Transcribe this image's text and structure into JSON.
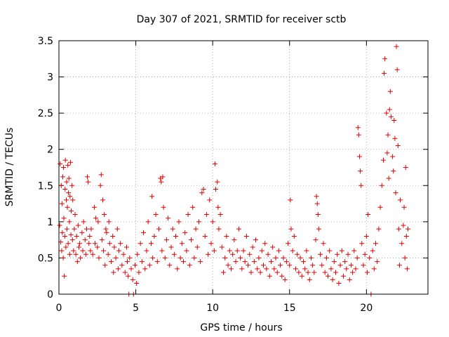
{
  "chart_data": {
    "type": "scatter",
    "title": "Day 307 of 2021, SRMTID for receiver sctb",
    "xlabel": "GPS time / hours",
    "ylabel": "SRMTID / TECUs",
    "xlim": [
      0,
      24
    ],
    "ylim": [
      0,
      3.5
    ],
    "xticks": [
      0,
      5,
      10,
      15,
      20
    ],
    "xtick_labels": [
      "0",
      "5",
      "10",
      "15",
      "20"
    ],
    "yticks": [
      0,
      0.5,
      1,
      1.5,
      2,
      2.5,
      3,
      3.5
    ],
    "ytick_labels": [
      "0",
      "0.5",
      "1",
      "1.5",
      "2",
      "2.5",
      "3",
      "3.5"
    ],
    "grid": true,
    "marker": "+",
    "color": "#e00000",
    "series": [
      {
        "name": "SRMTID",
        "points": [
          [
            0.05,
            0.95
          ],
          [
            0.08,
            1.8
          ],
          [
            0.12,
            0.72
          ],
          [
            0.15,
            1.5
          ],
          [
            0.18,
            0.6
          ],
          [
            0.2,
            1.25
          ],
          [
            0.22,
            0.85
          ],
          [
            0.25,
            1.62
          ],
          [
            0.28,
            0.5
          ],
          [
            0.3,
            1.75
          ],
          [
            0.32,
            1.05
          ],
          [
            0.35,
            0.25
          ],
          [
            0.38,
            0.8
          ],
          [
            0.4,
            1.45
          ],
          [
            0.42,
            1.85
          ],
          [
            0.45,
            0.65
          ],
          [
            0.48,
            1.3
          ],
          [
            0.5,
            1.55
          ],
          [
            0.52,
            0.9
          ],
          [
            0.55,
            1.2
          ],
          [
            0.58,
            1.78
          ],
          [
            0.6,
            0.7
          ],
          [
            0.62,
            1.4
          ],
          [
            0.65,
            1.6
          ],
          [
            0.68,
            1.0
          ],
          [
            0.7,
            0.55
          ],
          [
            0.72,
            1.35
          ],
          [
            0.75,
            1.82
          ],
          [
            0.78,
            0.82
          ],
          [
            0.8,
            1.15
          ],
          [
            0.85,
            1.5
          ],
          [
            0.88,
            0.75
          ],
          [
            0.9,
            1.3
          ],
          [
            0.95,
            0.6
          ],
          [
            1.0,
            0.9
          ],
          [
            1.05,
            1.1
          ],
          [
            1.1,
            0.55
          ],
          [
            1.15,
            0.8
          ],
          [
            1.2,
            0.45
          ],
          [
            1.25,
            0.95
          ],
          [
            1.3,
            0.65
          ],
          [
            1.35,
            0.7
          ],
          [
            1.4,
            0.5
          ],
          [
            1.5,
            0.85
          ],
          [
            1.55,
            0.6
          ],
          [
            1.6,
            1.0
          ],
          [
            1.7,
            0.75
          ],
          [
            1.75,
            0.55
          ],
          [
            1.8,
            0.9
          ],
          [
            1.85,
            1.62
          ],
          [
            1.9,
            1.55
          ],
          [
            1.95,
            0.7
          ],
          [
            2.0,
            0.8
          ],
          [
            2.05,
            0.6
          ],
          [
            2.1,
            0.9
          ],
          [
            2.2,
            0.55
          ],
          [
            2.3,
            1.2
          ],
          [
            2.35,
            0.7
          ],
          [
            2.4,
            1.05
          ],
          [
            2.5,
            0.65
          ],
          [
            2.55,
            1.0
          ],
          [
            2.6,
            0.5
          ],
          [
            2.7,
            1.5
          ],
          [
            2.75,
            1.65
          ],
          [
            2.8,
            0.75
          ],
          [
            2.85,
            1.3
          ],
          [
            2.9,
            0.6
          ],
          [
            2.95,
            1.1
          ],
          [
            3.0,
            0.4
          ],
          [
            3.05,
            0.9
          ],
          [
            3.1,
            0.85
          ],
          [
            3.2,
            0.55
          ],
          [
            3.25,
            1.0
          ],
          [
            3.3,
            0.7
          ],
          [
            3.4,
            0.45
          ],
          [
            3.5,
            0.8
          ],
          [
            3.55,
            0.3
          ],
          [
            3.6,
            0.65
          ],
          [
            3.7,
            0.5
          ],
          [
            3.8,
            0.9
          ],
          [
            3.85,
            0.35
          ],
          [
            3.9,
            0.6
          ],
          [
            4.0,
            0.7
          ],
          [
            4.1,
            0.4
          ],
          [
            4.2,
            0.55
          ],
          [
            4.3,
            0.3
          ],
          [
            4.4,
            0.65
          ],
          [
            4.45,
            0.45
          ],
          [
            4.5,
            0.25
          ],
          [
            4.55,
            0.0
          ],
          [
            4.6,
            0.5
          ],
          [
            4.7,
            0.35
          ],
          [
            4.8,
            0.2
          ],
          [
            4.85,
            0.0
          ],
          [
            4.95,
            0.4
          ],
          [
            5.05,
            0.15
          ],
          [
            5.1,
            0.55
          ],
          [
            5.2,
            0.3
          ],
          [
            5.3,
            0.7
          ],
          [
            5.4,
            0.45
          ],
          [
            5.5,
            0.85
          ],
          [
            5.6,
            0.35
          ],
          [
            5.7,
            0.6
          ],
          [
            5.8,
            1.0
          ],
          [
            5.9,
            0.4
          ],
          [
            6.0,
            0.7
          ],
          [
            6.05,
            1.35
          ],
          [
            6.1,
            0.5
          ],
          [
            6.2,
            0.8
          ],
          [
            6.3,
            1.1
          ],
          [
            6.4,
            0.45
          ],
          [
            6.5,
            0.9
          ],
          [
            6.6,
            1.6
          ],
          [
            6.65,
            1.55
          ],
          [
            6.7,
            0.6
          ],
          [
            6.75,
            1.62
          ],
          [
            6.8,
            1.2
          ],
          [
            6.9,
            0.5
          ],
          [
            7.0,
            0.75
          ],
          [
            7.1,
            1.05
          ],
          [
            7.2,
            0.4
          ],
          [
            7.3,
            0.65
          ],
          [
            7.4,
            0.9
          ],
          [
            7.5,
            0.55
          ],
          [
            7.6,
            0.8
          ],
          [
            7.7,
            0.35
          ],
          [
            7.8,
            1.0
          ],
          [
            7.9,
            0.5
          ],
          [
            8.0,
            0.7
          ],
          [
            8.1,
            0.45
          ],
          [
            8.2,
            0.85
          ],
          [
            8.3,
            0.6
          ],
          [
            8.4,
            1.1
          ],
          [
            8.5,
            0.4
          ],
          [
            8.6,
            0.75
          ],
          [
            8.7,
            1.2
          ],
          [
            8.8,
            0.5
          ],
          [
            8.9,
            0.9
          ],
          [
            9.0,
            0.65
          ],
          [
            9.1,
            1.0
          ],
          [
            9.2,
            0.45
          ],
          [
            9.3,
            1.4
          ],
          [
            9.4,
            1.45
          ],
          [
            9.5,
            0.8
          ],
          [
            9.6,
            1.1
          ],
          [
            9.7,
            0.55
          ],
          [
            9.8,
            1.3
          ],
          [
            9.9,
            0.7
          ],
          [
            10.0,
            1.0
          ],
          [
            10.1,
            0.6
          ],
          [
            10.15,
            1.8
          ],
          [
            10.2,
            1.45
          ],
          [
            10.3,
            1.55
          ],
          [
            10.35,
            1.2
          ],
          [
            10.4,
            0.9
          ],
          [
            10.5,
            1.1
          ],
          [
            10.6,
            0.65
          ],
          [
            10.7,
            0.3
          ],
          [
            10.8,
            0.5
          ],
          [
            10.9,
            0.8
          ],
          [
            11.0,
            0.4
          ],
          [
            11.1,
            0.6
          ],
          [
            11.2,
            0.35
          ],
          [
            11.3,
            0.55
          ],
          [
            11.4,
            0.75
          ],
          [
            11.5,
            0.45
          ],
          [
            11.6,
            0.6
          ],
          [
            11.7,
            0.9
          ],
          [
            11.8,
            0.5
          ],
          [
            11.9,
            0.35
          ],
          [
            12.0,
            0.6
          ],
          [
            12.1,
            0.45
          ],
          [
            12.2,
            0.8
          ],
          [
            12.3,
            0.4
          ],
          [
            12.4,
            0.55
          ],
          [
            12.5,
            0.3
          ],
          [
            12.6,
            0.65
          ],
          [
            12.7,
            0.45
          ],
          [
            12.8,
            0.75
          ],
          [
            12.9,
            0.35
          ],
          [
            13.0,
            0.5
          ],
          [
            13.1,
            0.3
          ],
          [
            13.2,
            0.6
          ],
          [
            13.3,
            0.4
          ],
          [
            13.4,
            0.7
          ],
          [
            13.5,
            0.35
          ],
          [
            13.6,
            0.55
          ],
          [
            13.7,
            0.25
          ],
          [
            13.8,
            0.45
          ],
          [
            13.9,
            0.65
          ],
          [
            14.0,
            0.35
          ],
          [
            14.1,
            0.5
          ],
          [
            14.2,
            0.3
          ],
          [
            14.3,
            0.6
          ],
          [
            14.4,
            0.4
          ],
          [
            14.5,
            0.25
          ],
          [
            14.6,
            0.5
          ],
          [
            14.7,
            0.2
          ],
          [
            14.8,
            0.45
          ],
          [
            14.9,
            0.7
          ],
          [
            15.0,
            0.4
          ],
          [
            15.05,
            1.3
          ],
          [
            15.1,
            0.9
          ],
          [
            15.2,
            0.6
          ],
          [
            15.3,
            0.8
          ],
          [
            15.4,
            0.35
          ],
          [
            15.5,
            0.55
          ],
          [
            15.6,
            0.3
          ],
          [
            15.7,
            0.5
          ],
          [
            15.8,
            0.25
          ],
          [
            15.9,
            0.45
          ],
          [
            16.0,
            0.35
          ],
          [
            16.1,
            0.6
          ],
          [
            16.2,
            0.3
          ],
          [
            16.3,
            0.2
          ],
          [
            16.4,
            0.5
          ],
          [
            16.5,
            0.4
          ],
          [
            16.6,
            0.3
          ],
          [
            16.7,
            0.75
          ],
          [
            16.75,
            1.35
          ],
          [
            16.8,
            1.25
          ],
          [
            16.85,
            1.1
          ],
          [
            16.9,
            0.9
          ],
          [
            17.0,
            0.55
          ],
          [
            17.1,
            0.4
          ],
          [
            17.2,
            0.7
          ],
          [
            17.3,
            0.3
          ],
          [
            17.4,
            0.5
          ],
          [
            17.5,
            0.25
          ],
          [
            17.6,
            0.6
          ],
          [
            17.7,
            0.35
          ],
          [
            17.8,
            0.2
          ],
          [
            17.9,
            0.45
          ],
          [
            18.0,
            0.3
          ],
          [
            18.1,
            0.55
          ],
          [
            18.2,
            0.15
          ],
          [
            18.3,
            0.4
          ],
          [
            18.4,
            0.6
          ],
          [
            18.5,
            0.25
          ],
          [
            18.6,
            0.45
          ],
          [
            18.7,
            0.35
          ],
          [
            18.8,
            0.55
          ],
          [
            18.9,
            0.2
          ],
          [
            19.0,
            0.4
          ],
          [
            19.1,
            0.3
          ],
          [
            19.2,
            0.6
          ],
          [
            19.3,
            0.35
          ],
          [
            19.4,
            0.5
          ],
          [
            19.45,
            2.3
          ],
          [
            19.5,
            2.2
          ],
          [
            19.55,
            1.9
          ],
          [
            19.6,
            1.7
          ],
          [
            19.65,
            1.5
          ],
          [
            19.7,
            0.7
          ],
          [
            19.8,
            0.4
          ],
          [
            19.9,
            0.55
          ],
          [
            20.0,
            0.8
          ],
          [
            20.05,
            0.3
          ],
          [
            20.1,
            1.1
          ],
          [
            20.2,
            0.5
          ],
          [
            20.3,
            0.0
          ],
          [
            20.4,
            0.6
          ],
          [
            20.5,
            0.35
          ],
          [
            20.6,
            0.7
          ],
          [
            20.7,
            0.45
          ],
          [
            20.8,
            0.9
          ],
          [
            20.9,
            1.2
          ],
          [
            21.0,
            1.5
          ],
          [
            21.1,
            1.85
          ],
          [
            21.15,
            3.05
          ],
          [
            21.2,
            3.25
          ],
          [
            21.3,
            2.5
          ],
          [
            21.35,
            1.95
          ],
          [
            21.4,
            2.2
          ],
          [
            21.45,
            1.6
          ],
          [
            21.5,
            2.55
          ],
          [
            21.55,
            2.8
          ],
          [
            21.6,
            2.45
          ],
          [
            21.7,
            1.9
          ],
          [
            21.75,
            1.7
          ],
          [
            21.8,
            2.4
          ],
          [
            21.85,
            2.15
          ],
          [
            21.9,
            1.4
          ],
          [
            21.95,
            3.42
          ],
          [
            22.0,
            3.1
          ],
          [
            22.05,
            2.05
          ],
          [
            22.1,
            0.9
          ],
          [
            22.15,
            0.4
          ],
          [
            22.2,
            1.3
          ],
          [
            22.3,
            0.7
          ],
          [
            22.4,
            0.95
          ],
          [
            22.45,
            1.2
          ],
          [
            22.5,
            0.5
          ],
          [
            22.55,
            1.75
          ],
          [
            22.6,
            0.8
          ],
          [
            22.65,
            0.35
          ],
          [
            22.7,
            0.9
          ]
        ]
      }
    ]
  }
}
